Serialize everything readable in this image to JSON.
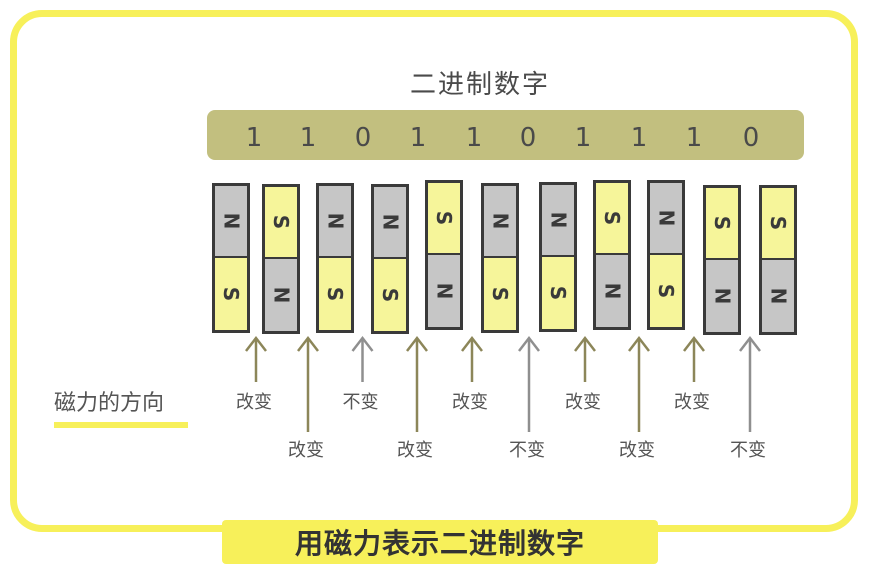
{
  "heading": "二进制数字",
  "bits": [
    "1",
    "1",
    "0",
    "1",
    "1",
    "0",
    "1",
    "1",
    "1",
    "0"
  ],
  "magnets": [
    {
      "top": "N",
      "bottom": "S"
    },
    {
      "top": "S",
      "bottom": "N"
    },
    {
      "top": "N",
      "bottom": "S"
    },
    {
      "top": "N",
      "bottom": "S"
    },
    {
      "top": "S",
      "bottom": "N"
    },
    {
      "top": "N",
      "bottom": "S"
    },
    {
      "top": "N",
      "bottom": "S"
    },
    {
      "top": "S",
      "bottom": "N"
    },
    {
      "top": "N",
      "bottom": "S"
    },
    {
      "top": "S",
      "bottom": "N"
    },
    {
      "top": "S",
      "bottom": "N"
    }
  ],
  "transitions": [
    {
      "label": "改变",
      "changed": true
    },
    {
      "label": "改变",
      "changed": true
    },
    {
      "label": "不变",
      "changed": false
    },
    {
      "label": "改变",
      "changed": true
    },
    {
      "label": "改变",
      "changed": true
    },
    {
      "label": "不变",
      "changed": false
    },
    {
      "label": "改变",
      "changed": true
    },
    {
      "label": "改变",
      "changed": true
    },
    {
      "label": "改变",
      "changed": true
    },
    {
      "label": "不变",
      "changed": false
    }
  ],
  "caption": "磁力的方向",
  "title": "用磁力表示二进制数字",
  "colors": {
    "frame": "#f7f05a",
    "bar": "#c2bf7f",
    "north": "#c6c6c6",
    "south": "#f6f59a",
    "arrow_changed": "#8c8659",
    "arrow_unchanged": "#8f8f8f"
  }
}
